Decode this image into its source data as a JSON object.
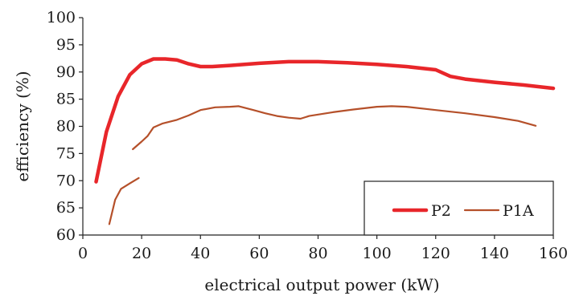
{
  "chart_data": {
    "type": "line",
    "xlabel": "electrical output power (kW)",
    "ylabel": "efficiency (%)",
    "xlim": [
      0,
      160
    ],
    "ylim": [
      60,
      100
    ],
    "xticks": [
      "0",
      "20",
      "40",
      "60",
      "80",
      "100",
      "120",
      "140",
      "160"
    ],
    "yticks": [
      "60",
      "65",
      "70",
      "75",
      "80",
      "85",
      "90",
      "95",
      "100"
    ],
    "grid": false,
    "legend_position": "bottom-right",
    "series": [
      {
        "name": "P2",
        "color": "#e8262a",
        "segments": [
          [
            [
              4.5,
              69.8
            ],
            [
              8,
              79
            ],
            [
              12,
              85.5
            ],
            [
              16,
              89.5
            ],
            [
              20,
              91.5
            ],
            [
              24,
              92.4
            ],
            [
              28,
              92.4
            ],
            [
              32,
              92.2
            ],
            [
              36,
              91.5
            ],
            [
              40,
              91.0
            ],
            [
              44,
              91.0
            ],
            [
              50,
              91.2
            ],
            [
              60,
              91.6
            ],
            [
              70,
              91.9
            ],
            [
              80,
              91.9
            ],
            [
              90,
              91.7
            ],
            [
              100,
              91.4
            ],
            [
              110,
              91.0
            ],
            [
              120,
              90.4
            ],
            [
              125,
              89.2
            ],
            [
              130,
              88.7
            ],
            [
              140,
              88.1
            ],
            [
              150,
              87.6
            ],
            [
              160,
              87.0
            ]
          ]
        ]
      },
      {
        "name": "P1A",
        "color": "#b5502a",
        "segments": [
          [
            [
              9,
              62
            ],
            [
              11,
              66.5
            ],
            [
              13,
              68.5
            ],
            [
              16,
              69.5
            ],
            [
              19,
              70.5
            ]
          ],
          [
            [
              17,
              75.8
            ],
            [
              20,
              77.2
            ],
            [
              22,
              78.2
            ],
            [
              24,
              79.8
            ],
            [
              27,
              80.5
            ],
            [
              32,
              81.2
            ],
            [
              36,
              82.0
            ],
            [
              40,
              83.0
            ],
            [
              45,
              83.5
            ],
            [
              50,
              83.6
            ],
            [
              53,
              83.7
            ],
            [
              58,
              83.0
            ],
            [
              62,
              82.4
            ],
            [
              66,
              81.9
            ],
            [
              70,
              81.6
            ],
            [
              74,
              81.4
            ],
            [
              77,
              81.9
            ],
            [
              85,
              82.6
            ],
            [
              92,
              83.1
            ],
            [
              100,
              83.6
            ],
            [
              105,
              83.7
            ],
            [
              110,
              83.6
            ],
            [
              120,
              83.0
            ],
            [
              130,
              82.4
            ],
            [
              140,
              81.7
            ],
            [
              148,
              81.0
            ],
            [
              154,
              80.1
            ]
          ]
        ]
      }
    ]
  }
}
